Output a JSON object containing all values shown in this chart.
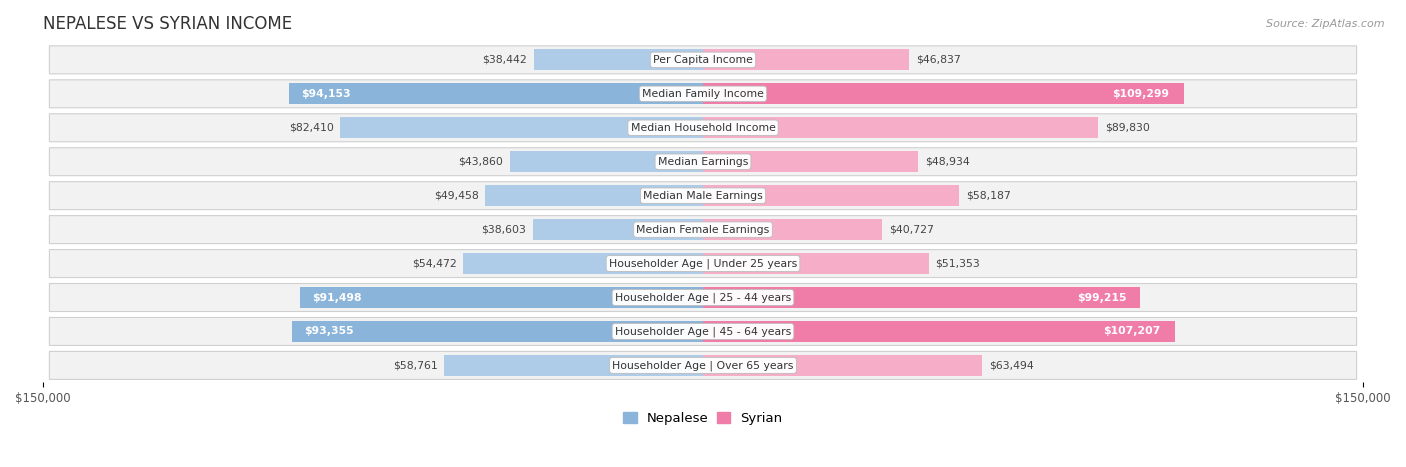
{
  "title": "NEPALESE VS SYRIAN INCOME",
  "source": "Source: ZipAtlas.com",
  "categories": [
    "Per Capita Income",
    "Median Family Income",
    "Median Household Income",
    "Median Earnings",
    "Median Male Earnings",
    "Median Female Earnings",
    "Householder Age | Under 25 years",
    "Householder Age | 25 - 44 years",
    "Householder Age | 45 - 64 years",
    "Householder Age | Over 65 years"
  ],
  "nepalese": [
    38442,
    94153,
    82410,
    43860,
    49458,
    38603,
    54472,
    91498,
    93355,
    58761
  ],
  "syrian": [
    46837,
    109299,
    89830,
    48934,
    58187,
    40727,
    51353,
    99215,
    107207,
    63494
  ],
  "nepalese_color": "#8ab4d9",
  "nepalese_color_light": "#aecbe8",
  "syrian_color": "#f07ca8",
  "syrian_color_light": "#f5adc8",
  "row_bg": "#f2f2f2",
  "row_border": "#d0d0d0",
  "max_value": 150000,
  "legend_nepalese": "Nepalese",
  "legend_syrian": "Syrian",
  "x_tick_label": "$150,000",
  "highlight_indices": [
    1,
    7,
    8
  ]
}
